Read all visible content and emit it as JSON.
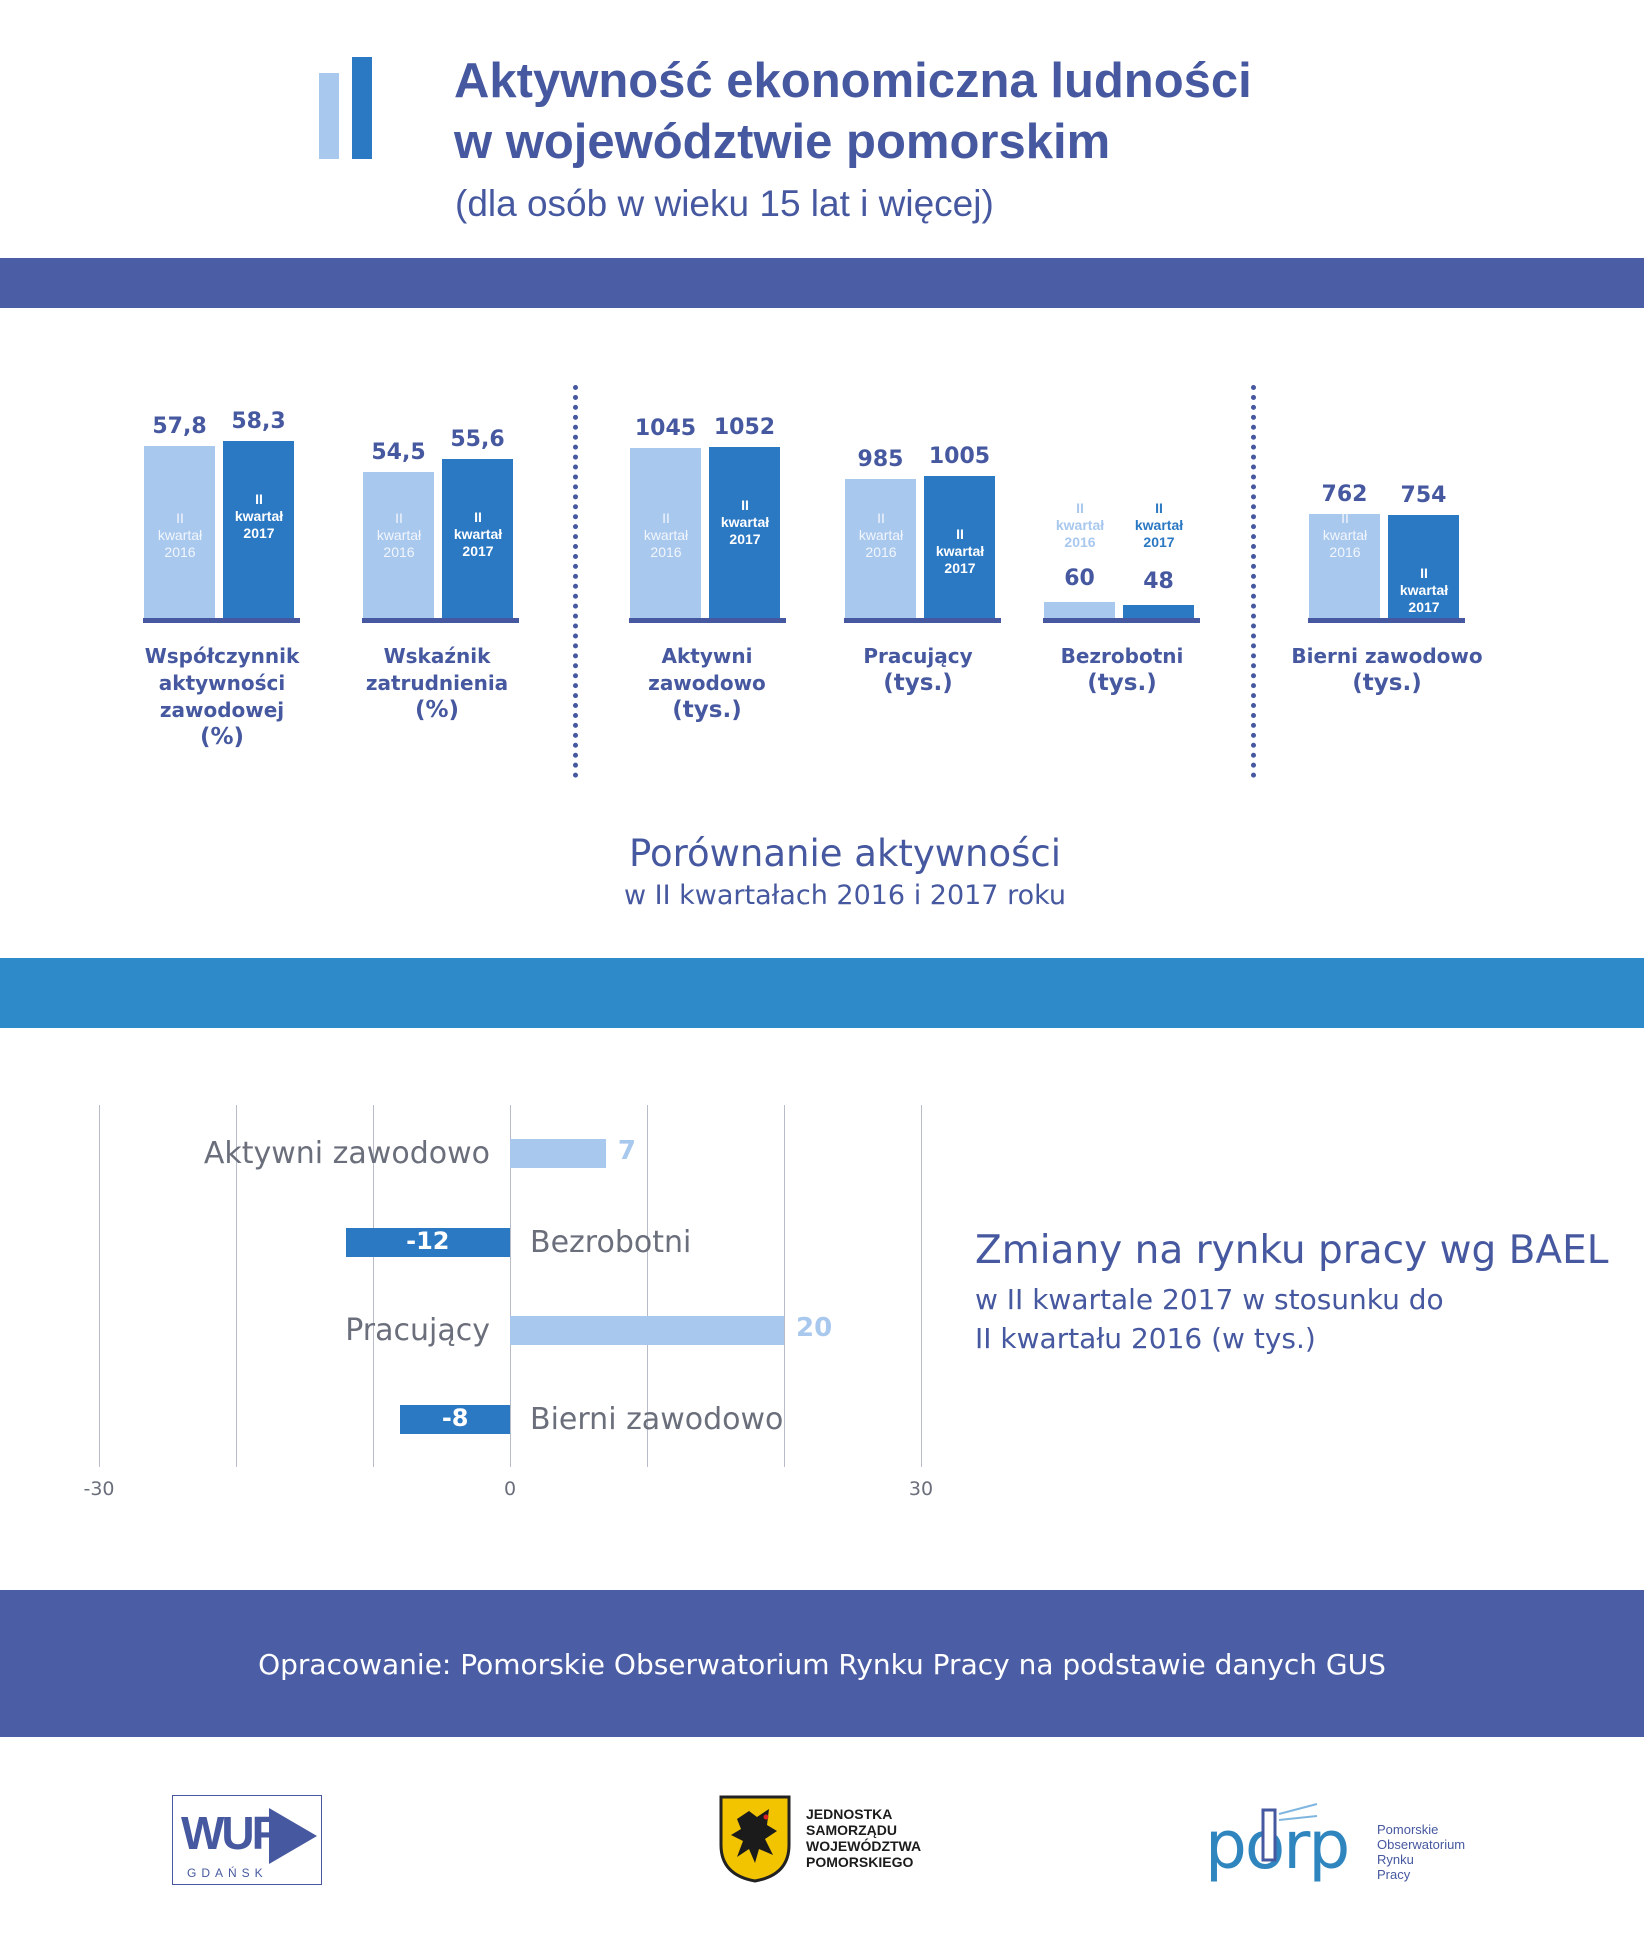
{
  "header": {
    "title_line1": "Aktywność ekonomiczna ludności",
    "title_line2": "w województwie pomorskim",
    "subtitle": "(dla osób w wieku 15 lat i więcej)"
  },
  "comparison": {
    "title": "Porównanie aktywności",
    "subtitle": "w II kwartałach 2016 i 2017 roku",
    "series_label_2016": [
      "II",
      "kwartał",
      "2016"
    ],
    "series_label_2017": [
      "II",
      "kwartał",
      "2017"
    ]
  },
  "changes": {
    "title": "Zmiany na rynku pracy wg BAEL",
    "subtitle_line1": "w II kwartale 2017 w stosunku do",
    "subtitle_line2": "II kwartału 2016 (w tys.)"
  },
  "footer": {
    "source": "Opracowanie: Pomorskie Obserwatorium Rynku Pracy na podstawie danych GUS"
  },
  "logos": {
    "wup_main": "WUP",
    "wup_sub": "GDAŃSK",
    "crest_lines": [
      "JEDNOSTKA",
      "SAMORZĄDU",
      "WOJEWÓDZTWA",
      "POMORSKIEGO"
    ],
    "porp_text": "porp",
    "porp_lines": [
      "Pomorskie",
      "Obserwatorium",
      "Rynku",
      "Pracy"
    ]
  },
  "colors": {
    "primary": "#46589f",
    "band_blue": "#4b5da4",
    "band_light": "#2e8ac8",
    "bar_2016": "#a9c8ee",
    "bar_2017": "#2b78c3"
  },
  "chart_data": [
    {
      "type": "bar",
      "groups": [
        {
          "label_lines": [
            "Współczynnik",
            "aktywności",
            "zawodowej"
          ],
          "unit": "(%)",
          "values": [
            57.8,
            58.3
          ],
          "labels": [
            "57,8",
            "58,3"
          ]
        },
        {
          "label_lines": [
            "Wskaźnik",
            "zatrudnienia"
          ],
          "unit": "(%)",
          "values": [
            54.5,
            55.6
          ],
          "labels": [
            "54,5",
            "55,6"
          ]
        },
        {
          "label_lines": [
            "Aktywni",
            "zawodowo"
          ],
          "unit": "(tys.)",
          "values": [
            1045,
            1052
          ],
          "labels": [
            "1045",
            "1052"
          ]
        },
        {
          "label_lines": [
            "Pracujący"
          ],
          "unit": "(tys.)",
          "values": [
            985,
            1005
          ],
          "labels": [
            "985",
            "1005"
          ]
        },
        {
          "label_lines": [
            "Bezrobotni"
          ],
          "unit": "(tys.)",
          "values": [
            60,
            48
          ],
          "labels": [
            "60",
            "48"
          ]
        },
        {
          "label_lines": [
            "Bierni zawodowo"
          ],
          "unit": "(tys.)",
          "values": [
            762,
            754
          ],
          "labels": [
            "762",
            "754"
          ]
        }
      ]
    },
    {
      "type": "bar",
      "orientation": "horizontal",
      "categories": [
        "Aktywni zawodowo",
        "Bezrobotni",
        "Pracujący",
        "Bierni zawodowo"
      ],
      "values": [
        7,
        -12,
        20,
        -8
      ],
      "value_labels": [
        "7",
        "-12",
        "20",
        "-8"
      ],
      "xlim": [
        -30,
        30
      ],
      "xticks": [
        "-30",
        "0",
        "30"
      ],
      "grid": true
    }
  ]
}
